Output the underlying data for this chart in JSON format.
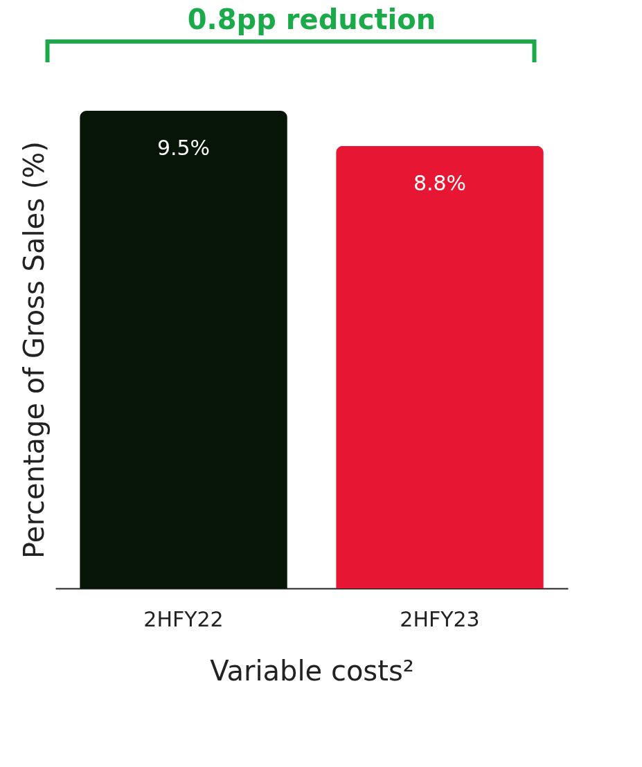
{
  "chart_data": {
    "type": "bar",
    "categories": [
      "2HFY22",
      "2HFY23"
    ],
    "values": [
      9.5,
      8.8
    ],
    "colors": [
      "#061505",
      "#e71734"
    ],
    "value_labels": [
      "9.5%",
      "8.8%"
    ],
    "ylabel": "Percentage of Gross Sales (%)",
    "xlabel": "Variable costs²",
    "annotations": [
      "0.8pp reduction"
    ],
    "grid": false,
    "legend": false
  }
}
